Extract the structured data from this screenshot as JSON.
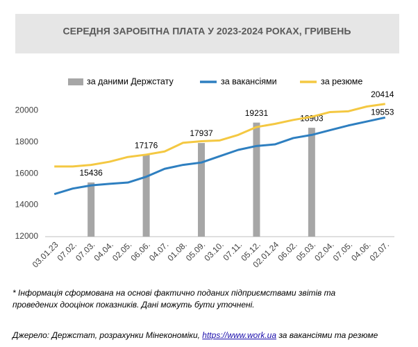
{
  "chart_data": {
    "type": "bar_line",
    "title": "СЕРЕДНЯ ЗАРОБІТНА ПЛАТА У 2023-2024 РОКАХ, ГРИВЕНЬ",
    "categories": [
      "03.01.23",
      "07.02.",
      "07.03.",
      "04.04.",
      "02.05.",
      "06.06.",
      "04.07.",
      "01.08.",
      "05.09.",
      "03.10.",
      "07.11.",
      "05.12.",
      "02.01.24",
      "06.02.",
      "05.03.",
      "02.04.",
      "07.05.",
      "04.06.",
      "02.07."
    ],
    "series": [
      {
        "name": "за даними Держстату",
        "type": "bar",
        "color": "#a6a6a6",
        "label_points": "all",
        "values": [
          null,
          null,
          15436,
          null,
          null,
          17176,
          null,
          null,
          17937,
          null,
          null,
          19231,
          null,
          null,
          18903,
          null,
          null,
          null,
          null
        ]
      },
      {
        "name": "за вакансіями",
        "type": "line",
        "color": "#2e7fc0",
        "label_points": "last",
        "values": [
          14700,
          15050,
          15250,
          15350,
          15430,
          15800,
          16300,
          16550,
          16700,
          17100,
          17500,
          17750,
          17850,
          18250,
          18450,
          18750,
          19050,
          19300,
          19553
        ]
      },
      {
        "name": "за резюме",
        "type": "line",
        "color": "#f4c842",
        "label_points": "last",
        "values": [
          16450,
          16450,
          16550,
          16750,
          17050,
          17200,
          17400,
          17950,
          18050,
          18100,
          18450,
          18950,
          19150,
          19400,
          19600,
          19900,
          19950,
          20250,
          20414
        ]
      }
    ],
    "ylim": [
      12000,
      20800
    ],
    "yticks": [
      12000,
      14000,
      16000,
      18000,
      20000
    ],
    "grid": false,
    "legend": "top"
  },
  "notes": [
    "* Інформація сформована на основі фактично поданих підприємствами звітів та",
    "проведених дооцінок показників. Дані можуть бути уточнені."
  ],
  "source": {
    "prefix": "Джерело: Держстат, розрахунки Мінекономіки, ",
    "link": "https://www.work.ua",
    "suffix": " за вакансіями та резюме"
  }
}
